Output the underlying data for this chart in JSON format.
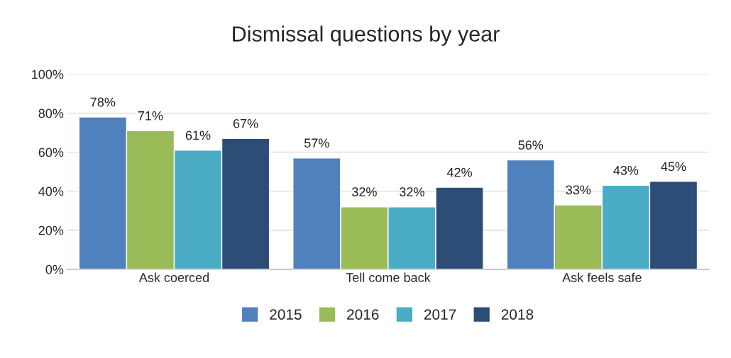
{
  "chart_data": {
    "type": "bar",
    "title": "Dismissal questions by year",
    "categories": [
      "Ask coerced",
      "Tell come back",
      "Ask feels safe"
    ],
    "series": [
      {
        "name": "2015",
        "color": "#4f81bd",
        "values": [
          78,
          57,
          56
        ],
        "value_labels": [
          "78%",
          "57%",
          "56%"
        ]
      },
      {
        "name": "2016",
        "color": "#9bbb59",
        "values": [
          71,
          32,
          33
        ],
        "value_labels": [
          "71%",
          "32%",
          "33%"
        ]
      },
      {
        "name": "2017",
        "color": "#4bacc6",
        "values": [
          61,
          32,
          43
        ],
        "value_labels": [
          "61%",
          "32%",
          "43%"
        ]
      },
      {
        "name": "2018",
        "color": "#2c4d75",
        "values": [
          67,
          42,
          45
        ],
        "value_labels": [
          "67%",
          "42%",
          "45%"
        ]
      }
    ],
    "ylim": [
      0,
      100
    ],
    "yticks": [
      {
        "value": 0,
        "label": "0%"
      },
      {
        "value": 20,
        "label": "20%"
      },
      {
        "value": 40,
        "label": "40%"
      },
      {
        "value": 60,
        "label": "60%"
      },
      {
        "value": 80,
        "label": "80%"
      },
      {
        "value": 100,
        "label": "100%"
      }
    ],
    "grid": "y",
    "legend": "bottom"
  }
}
